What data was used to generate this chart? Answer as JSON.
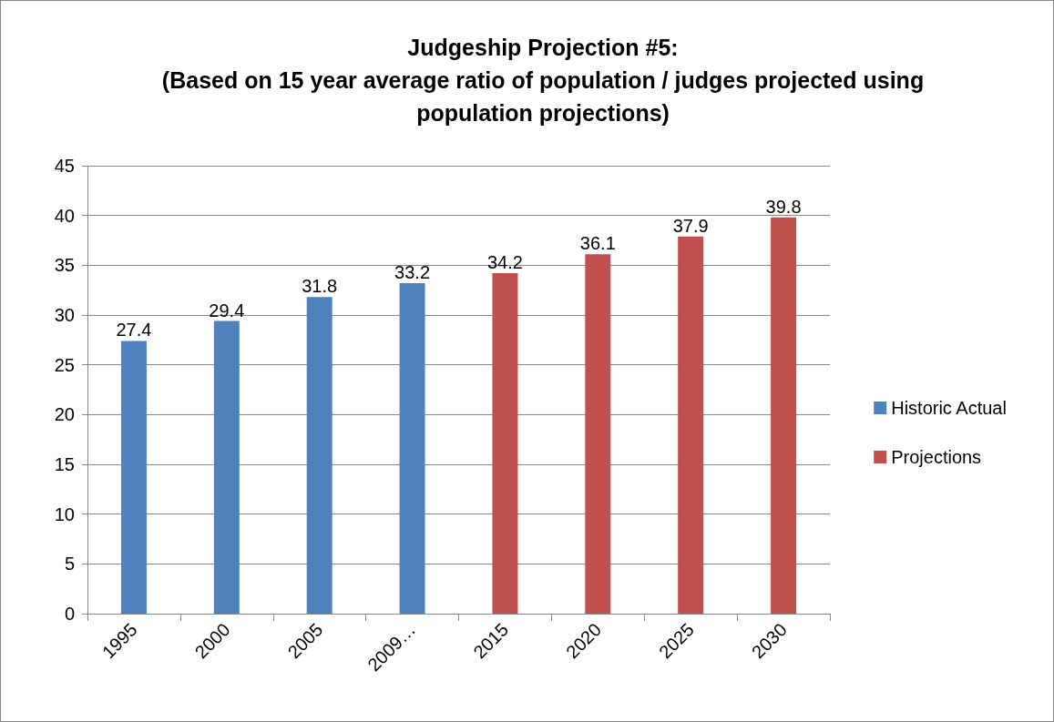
{
  "chart_data": {
    "type": "bar",
    "title": "Judgeship Projection #5:\n(Based on 15 year average ratio of population / judges projected using\npopulation projections)",
    "categories": [
      "1995",
      "2000",
      "2005",
      "2009…",
      "2015",
      "2020",
      "2025",
      "2030"
    ],
    "series": [
      {
        "name": "Historic Actual",
        "color": "#4f81bd",
        "values": [
          27.4,
          29.4,
          31.8,
          33.2,
          null,
          null,
          null,
          null
        ]
      },
      {
        "name": "Projections",
        "color": "#c0504d",
        "values": [
          null,
          null,
          null,
          null,
          34.2,
          36.1,
          37.9,
          39.8
        ]
      }
    ],
    "ylim": [
      0,
      45
    ],
    "yticks": [
      0,
      5,
      10,
      15,
      20,
      25,
      30,
      35,
      40,
      45
    ],
    "grid": "y",
    "legend": "right",
    "data_labels": true
  }
}
